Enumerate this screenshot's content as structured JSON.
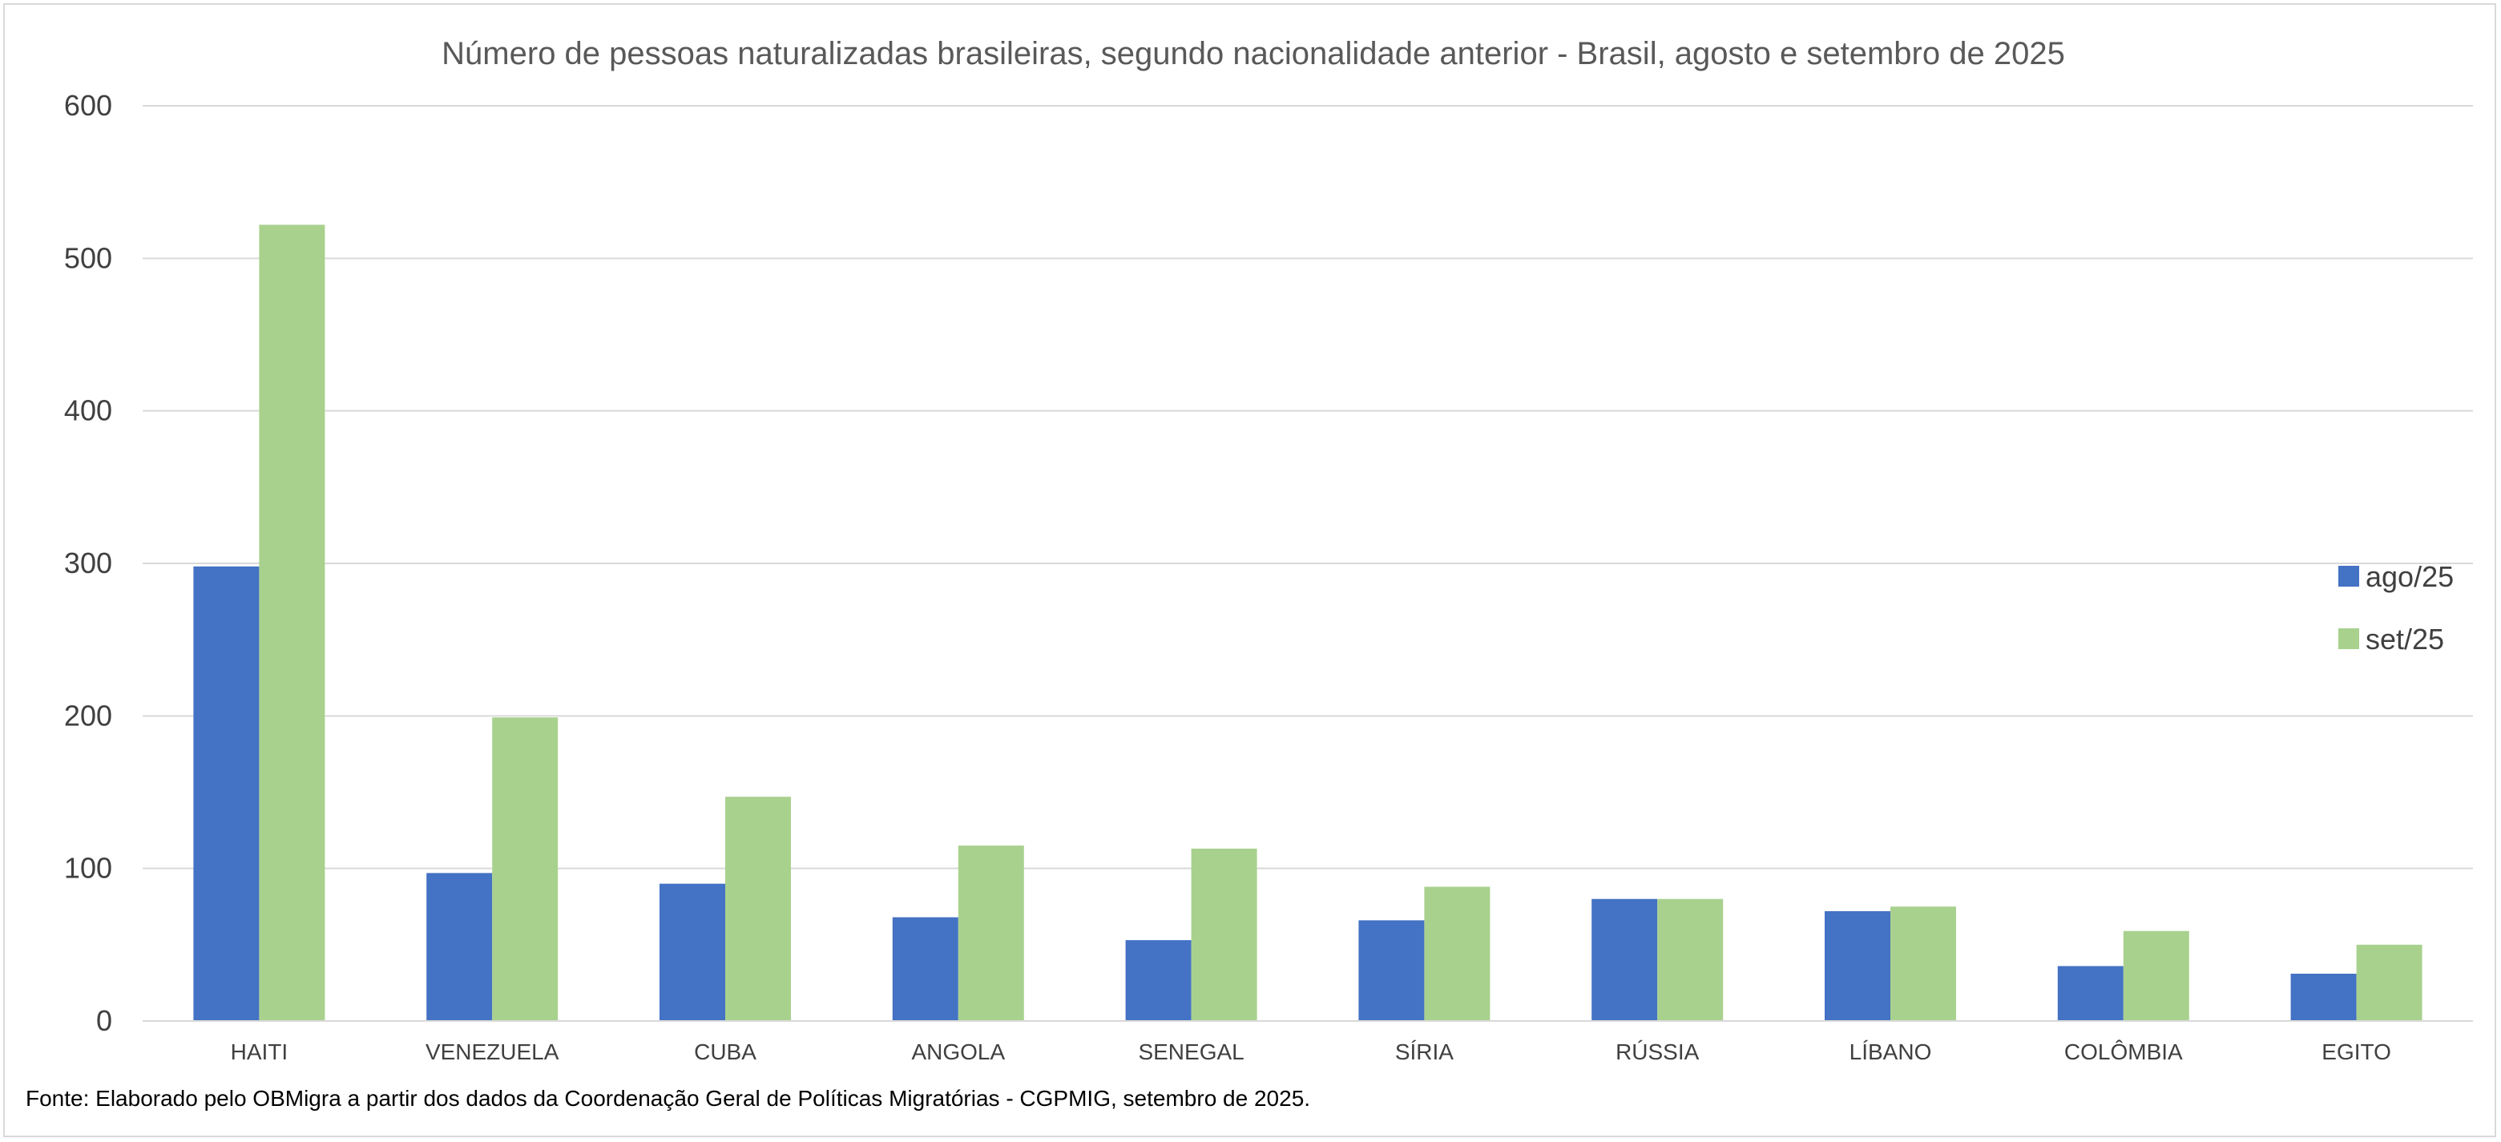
{
  "chart_data": {
    "type": "bar",
    "title": "Número de pessoas naturalizadas brasileiras, segundo nacionalidade anterior - Brasil, agosto e setembro  de 2025",
    "xlabel": "",
    "ylabel": "",
    "ylim": [
      0,
      600
    ],
    "yticks": [
      "0",
      "100",
      "200",
      "300",
      "400",
      "500",
      "600"
    ],
    "grid": "horizontal",
    "legend_position": "right",
    "categories": [
      "HAITI",
      "VENEZUELA",
      "CUBA",
      "ANGOLA",
      "SENEGAL",
      "SÍRIA",
      "RÚSSIA",
      "LÍBANO",
      "COLÔMBIA",
      "EGITO"
    ],
    "series": [
      {
        "name": "ago/25",
        "color": "#4472c4",
        "values": [
          298,
          97,
          90,
          68,
          53,
          66,
          80,
          72,
          36,
          31
        ]
      },
      {
        "name": "set/25",
        "color": "#a9d18e",
        "values": [
          522,
          199,
          147,
          115,
          113,
          88,
          80,
          75,
          59,
          50
        ]
      }
    ]
  },
  "source_note": "Fonte: Elaborado pelo OBMigra a partir dos dados da Coordenação Geral de Políticas Migratórias - CGPMIG, setembro de 2025."
}
